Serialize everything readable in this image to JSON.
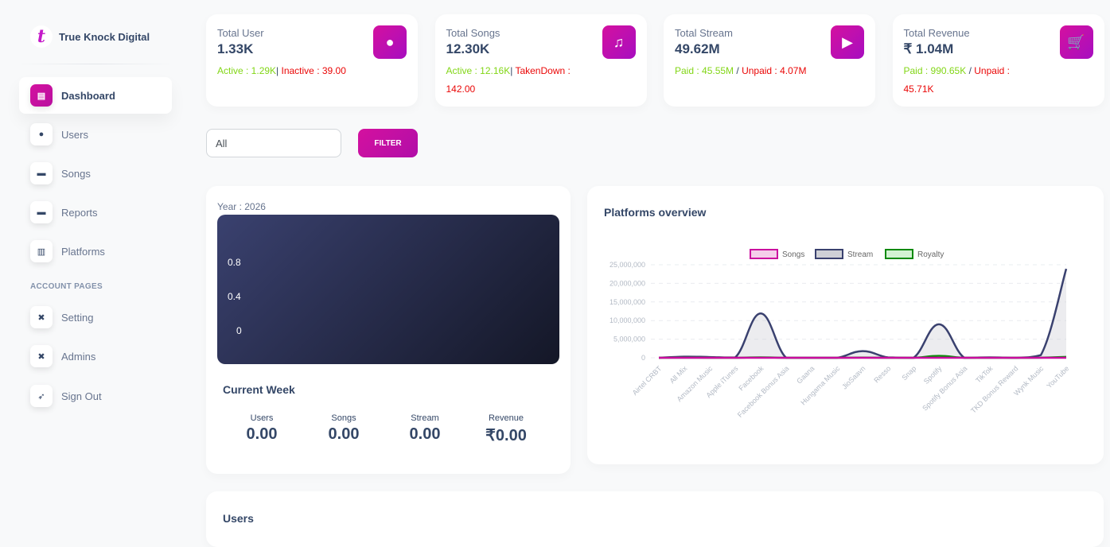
{
  "brand": {
    "name": "True Knock Digital",
    "logo_letter": "t"
  },
  "sidebar": {
    "items": [
      {
        "label": "Dashboard",
        "icon": "shop-icon",
        "active": true
      },
      {
        "label": "Users",
        "icon": "users-icon"
      },
      {
        "label": "Songs",
        "icon": "card-icon"
      },
      {
        "label": "Reports",
        "icon": "card-icon"
      },
      {
        "label": "Platforms",
        "icon": "chart-bar-icon"
      }
    ],
    "section_label": "ACCOUNT PAGES",
    "account_items": [
      {
        "label": "Setting",
        "icon": "tools-icon"
      },
      {
        "label": "Admins",
        "icon": "tools-icon"
      },
      {
        "label": "Sign Out",
        "icon": "rocket-icon"
      }
    ]
  },
  "stats": [
    {
      "title": "Total User",
      "value": "1.33K",
      "a_label": "Active : 1.29K",
      "sep": "| ",
      "b_label": "Inactive : 39.00",
      "icon": "user-icon"
    },
    {
      "title": "Total Songs",
      "value": "12.30K",
      "a_label": "Active : 12.16K",
      "sep": "| ",
      "b_label": "TakenDown : 142.00",
      "icon": "music-icon"
    },
    {
      "title": "Total Stream",
      "value": "49.62M",
      "a_label": "Paid : 45.55M",
      "sep": " / ",
      "b_label": "Unpaid : 4.07M",
      "icon": "play-icon"
    },
    {
      "title": "Total Revenue",
      "value": "₹ 1.04M",
      "a_label": "Paid : 990.65K",
      "sep": " / ",
      "b_label": "Unpaid : 45.71K",
      "icon": "cart-icon"
    }
  ],
  "filter": {
    "value": "All",
    "button": "FILTER"
  },
  "year_card": {
    "label": "Year : 2026",
    "ticks": [
      "0.8",
      "0.4",
      "0"
    ]
  },
  "current_week": {
    "title": "Current Week",
    "items": [
      {
        "label": "Users",
        "value": "0.00"
      },
      {
        "label": "Songs",
        "value": "0.00"
      },
      {
        "label": "Stream",
        "value": "0.00"
      },
      {
        "label": "Revenue",
        "value": "₹0.00"
      }
    ]
  },
  "users_section": {
    "title": "Users"
  },
  "chart_data": {
    "type": "line",
    "title": "Platforms overview",
    "legend_position": "top",
    "grid": true,
    "ylim": [
      0,
      25000000
    ],
    "yticks": [
      "0",
      "5,000,000",
      "10,000,000",
      "15,000,000",
      "20,000,000",
      "25,000,000"
    ],
    "categories": [
      "Airtel CRBT",
      "All Mix",
      "Amazon Music",
      "Apple iTunes",
      "Facebook",
      "Facebook Bonus Asia",
      "Gaana",
      "Hungama Music",
      "JioSaavn",
      "Resso",
      "Snap",
      "Spotify",
      "Spotify Bonus Asia",
      "TikTok",
      "TKD Bonus Reward",
      "Wynk Music",
      "YouTube"
    ],
    "series": [
      {
        "name": "Songs",
        "color": "#cb0c9f",
        "fill": "#f5cdea",
        "values": [
          0,
          0,
          0,
          0,
          0,
          0,
          0,
          0,
          0,
          0,
          0,
          0,
          0,
          0,
          0,
          0,
          0
        ]
      },
      {
        "name": "Stream",
        "color": "#3a416f",
        "fill": "#cfd0d6",
        "values": [
          0,
          300000,
          200000,
          100000,
          11900000,
          0,
          0,
          0,
          1800000,
          100000,
          0,
          9000000,
          0,
          100000,
          0,
          700000,
          23900000
        ]
      },
      {
        "name": "Royalty",
        "color": "#0a8a0a",
        "fill": "#d2f2d2",
        "values": [
          0,
          20000,
          10000,
          10000,
          100000,
          0,
          0,
          0,
          50000,
          5000,
          0,
          500000,
          0,
          10000,
          0,
          30000,
          250000
        ]
      }
    ]
  }
}
